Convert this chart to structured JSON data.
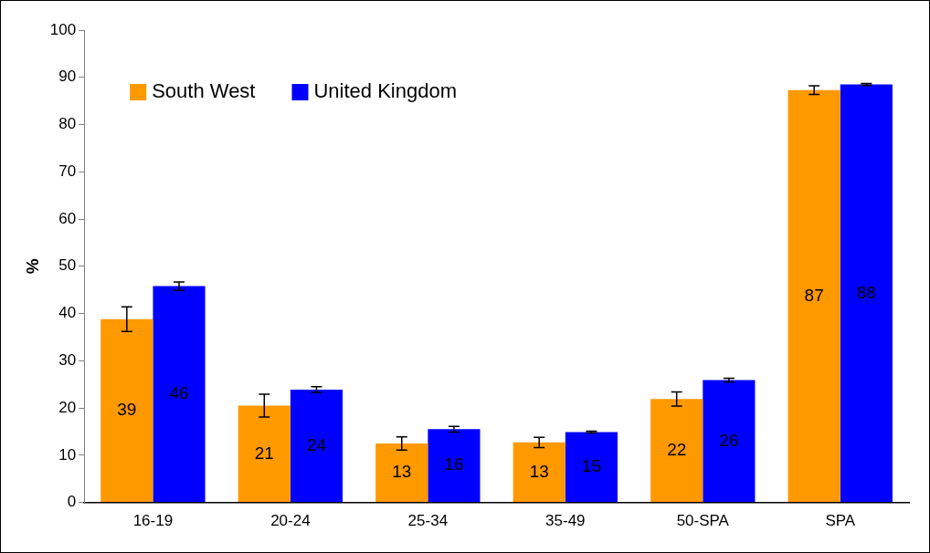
{
  "chart_data": {
    "type": "bar",
    "ylabel": "%",
    "categories": [
      "16-19",
      "20-24",
      "25-34",
      "35-49",
      "50-SPA",
      "SPA"
    ],
    "series": [
      {
        "name": "South West",
        "color": "#ff9900",
        "values": [
          38.8,
          20.5,
          12.5,
          12.7,
          21.9,
          87.3
        ],
        "errors": [
          2.6,
          2.4,
          1.4,
          1.1,
          1.5,
          0.9
        ],
        "value_labels": [
          "39",
          "21",
          "13",
          "13",
          "22",
          "87"
        ]
      },
      {
        "name": "United Kingdom",
        "color": "#0000ff",
        "values": [
          45.8,
          23.9,
          15.5,
          14.9,
          25.9,
          88.5
        ],
        "errors": [
          0.9,
          0.6,
          0.6,
          0.2,
          0.4,
          0.2
        ],
        "value_labels": [
          "46",
          "24",
          "16",
          "15",
          "26",
          "88"
        ]
      }
    ],
    "ylim": [
      0,
      100
    ],
    "yticks": [
      0,
      10,
      20,
      30,
      40,
      50,
      60,
      70,
      80,
      90,
      100
    ],
    "grid": false,
    "legend": "top left"
  }
}
